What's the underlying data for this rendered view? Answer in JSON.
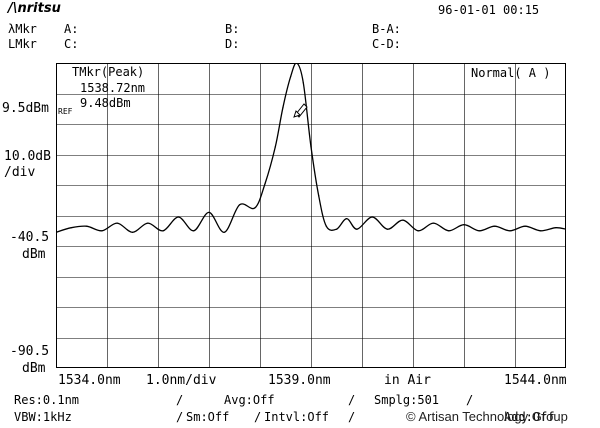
{
  "header": {
    "logo": "/\\nritsu",
    "datetime": "96-01-01 00:15",
    "lambda_mkr_label": "λMkr",
    "level_mkr_label": "LMkr",
    "marker_slots": {
      "a": "A:",
      "b": "B:",
      "ba": "B-A:",
      "c": "C:",
      "d": "D:",
      "cd": "C-D:"
    }
  },
  "marker_readout": {
    "title": "TMkr(Peak)",
    "wavelength": "1538.72nm",
    "level": "9.48dBm",
    "mode": "Normal( A )"
  },
  "y_axis": {
    "ref_value": "9.5dBm",
    "ref_tag": "REF",
    "scale_value": "10.0dB",
    "scale_unit": "/div",
    "mid_value": "-40.5",
    "mid_unit": "dBm",
    "bottom_value": "-90.5",
    "bottom_unit": "dBm"
  },
  "x_axis": {
    "start": "1534.0nm",
    "per_div": "1.0nm/div",
    "center": "1539.0nm",
    "medium": "in Air",
    "stop": "1544.0nm"
  },
  "settings": {
    "res": "Res:0.1nm",
    "avg": "Avg:Off",
    "smplg": "Smplg:501",
    "vbw": "VBW:1kHz",
    "sm": "Sm:Off",
    "intvl": "Intvl:Off",
    "add": "Add:Off"
  },
  "watermark": "© Artisan Technology Group",
  "chart_data": {
    "type": "line",
    "x_range": [
      1534.0,
      1544.0
    ],
    "y_range": [
      -90.5,
      9.5
    ],
    "grid": true,
    "series": [
      {
        "x": [
          1534.0,
          1534.3,
          1534.6,
          1534.9,
          1535.2,
          1535.5,
          1535.8,
          1536.1,
          1536.4,
          1536.7,
          1537.0,
          1537.3,
          1537.6,
          1537.9,
          1538.1,
          1538.3,
          1538.45,
          1538.6,
          1538.72,
          1538.85,
          1539.0,
          1539.15,
          1539.3,
          1539.5,
          1539.7,
          1539.9,
          1540.2,
          1540.5,
          1540.8,
          1541.1,
          1541.4,
          1541.7,
          1542.0,
          1542.3,
          1542.6,
          1542.9,
          1543.2,
          1543.5,
          1543.8,
          1544.0
        ],
        "y": [
          -46.0,
          -44.5,
          -44.0,
          -45.5,
          -43.0,
          -46.0,
          -43.0,
          -45.5,
          -41.0,
          -45.5,
          -39.5,
          -46.0,
          -37.0,
          -38.0,
          -30.0,
          -18.0,
          -5.0,
          5.0,
          9.48,
          3.0,
          -18.0,
          -34.0,
          -44.0,
          -45.0,
          -41.5,
          -45.0,
          -41.0,
          -45.0,
          -42.0,
          -45.5,
          -43.0,
          -45.5,
          -43.5,
          -45.5,
          -44.0,
          -45.5,
          -44.0,
          -45.5,
          -44.5,
          -45.0
        ]
      }
    ]
  }
}
